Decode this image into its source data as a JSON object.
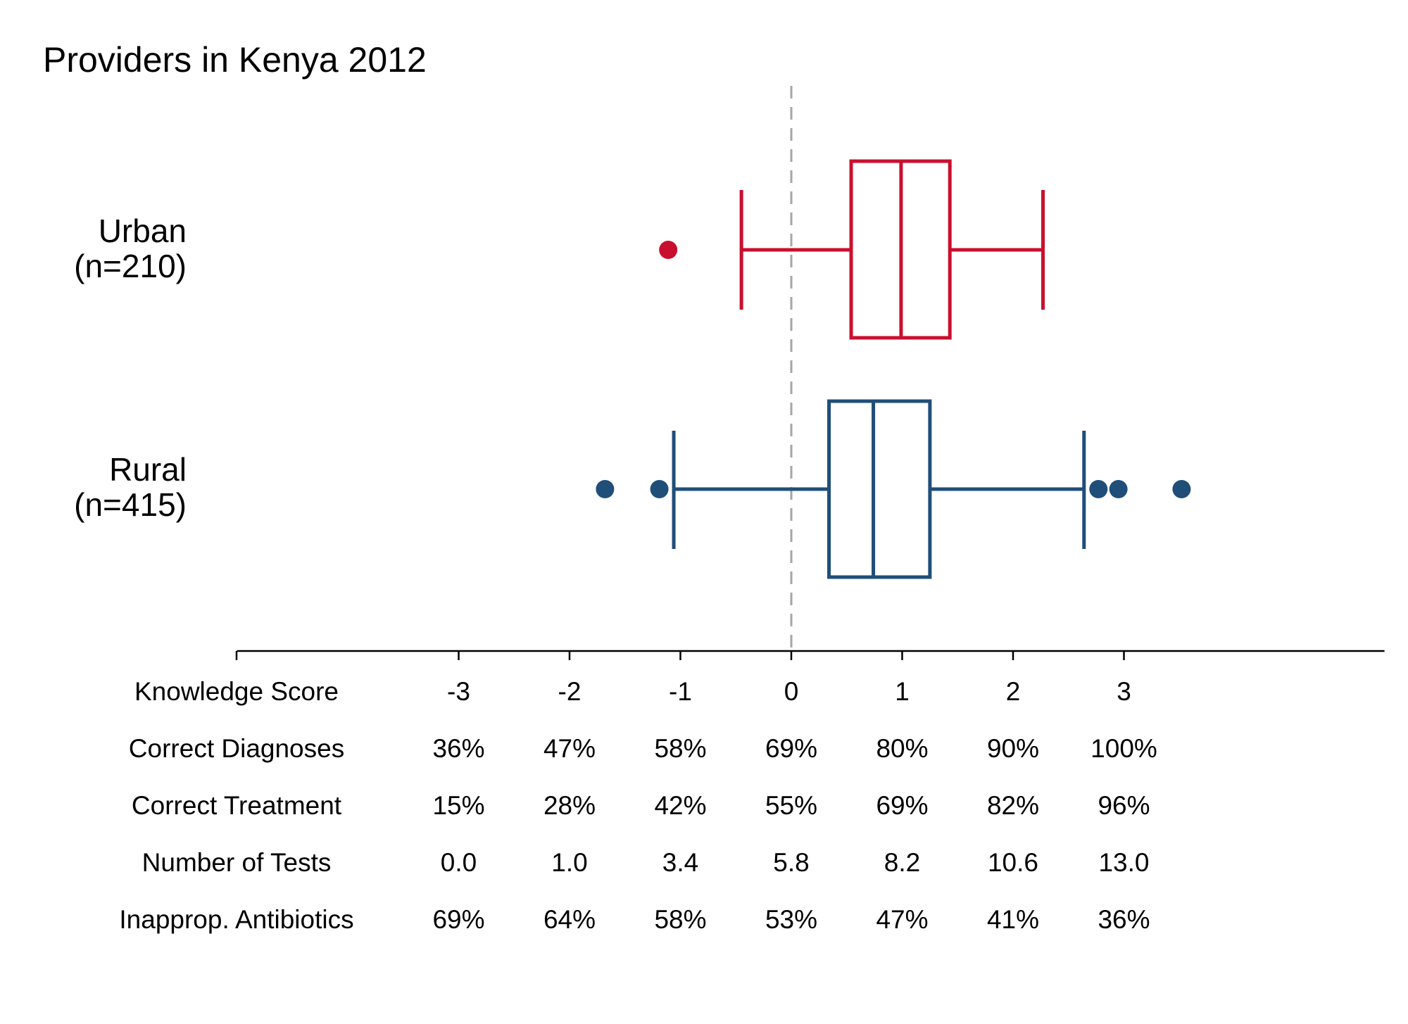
{
  "chart_data": {
    "type": "boxplot",
    "title": "Providers in Kenya 2012",
    "xlim": [
      -5,
      5.35
    ],
    "reference_line_x": 0,
    "groups": [
      {
        "label_line1": "Urban",
        "label_line2": "(n=210)",
        "color": "#c8102e",
        "whisker_low": -0.45,
        "q1": 0.54,
        "median": 0.99,
        "q3": 1.43,
        "whisker_high": 2.27,
        "outliers": [
          -1.11
        ]
      },
      {
        "label_line1": "Rural",
        "label_line2": "(n=415)",
        "color": "#1f4e79",
        "whisker_low": -1.06,
        "q1": 0.34,
        "median": 0.74,
        "q3": 1.25,
        "whisker_high": 2.64,
        "outliers": [
          -1.68,
          -1.19,
          2.77,
          2.95,
          3.52
        ]
      }
    ],
    "axis_table": {
      "ticks": [
        -3,
        -2,
        -1,
        0,
        1,
        2,
        3
      ],
      "rows": [
        {
          "label": "Knowledge Score",
          "values": [
            "-3",
            "-2",
            "-1",
            "0",
            "1",
            "2",
            "3"
          ]
        },
        {
          "label": "Correct Diagnoses",
          "values": [
            "36%",
            "47%",
            "58%",
            "69%",
            "80%",
            "90%",
            "100%"
          ]
        },
        {
          "label": "Correct Treatment",
          "values": [
            "15%",
            "28%",
            "42%",
            "55%",
            "69%",
            "82%",
            "96%"
          ]
        },
        {
          "label": "Number of Tests",
          "values": [
            "0.0",
            "1.0",
            "3.4",
            "5.8",
            "8.2",
            "10.6",
            "13.0"
          ]
        },
        {
          "label": "Inapprop. Antibiotics",
          "values": [
            "69%",
            "64%",
            "58%",
            "53%",
            "47%",
            "41%",
            "36%"
          ]
        }
      ]
    }
  }
}
